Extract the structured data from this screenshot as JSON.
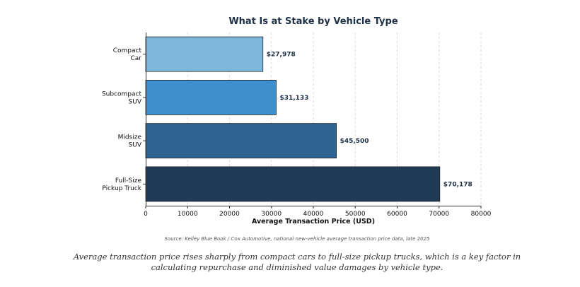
{
  "chart_data": {
    "type": "bar",
    "orientation": "horizontal",
    "title": "What Is at Stake by Vehicle Type",
    "categories": [
      [
        "Compact",
        "Car"
      ],
      [
        "Subcompact",
        "SUV"
      ],
      [
        "Midsize",
        "SUV"
      ],
      [
        "Full-Size",
        "Pickup Truck"
      ]
    ],
    "values": [
      27978,
      31133,
      45500,
      70178
    ],
    "value_labels": [
      "$27,978",
      "$31,133",
      "$45,500",
      "$70,178"
    ],
    "bar_colors": [
      "#7db8dc",
      "#3e8fcb",
      "#2f6391",
      "#1f3b57"
    ],
    "xlabel": "Average Transaction Price (USD)",
    "ylabel": "",
    "xlim": [
      0,
      80000
    ],
    "xticks": [
      0,
      10000,
      20000,
      30000,
      40000,
      50000,
      60000,
      70000,
      80000
    ],
    "grid": true,
    "source": "Source: Kelley Blue Book / Cox Automotive, national new-vehicle average transaction price data, late 2025"
  },
  "caption": "Average transaction price rises sharply from compact cars to full-size pickup trucks, which is a key factor in calculating repurchase and diminished value damages by vehicle type."
}
